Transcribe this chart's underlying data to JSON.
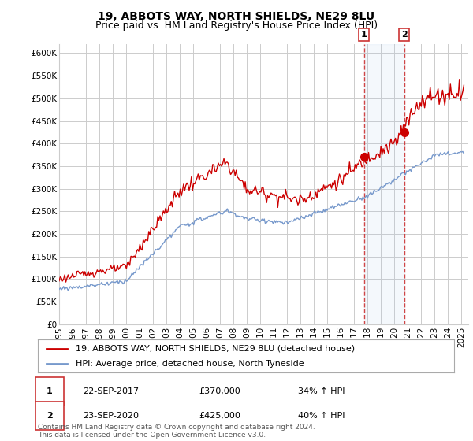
{
  "title": "19, ABBOTS WAY, NORTH SHIELDS, NE29 8LU",
  "subtitle": "Price paid vs. HM Land Registry's House Price Index (HPI)",
  "ylim": [
    0,
    620000
  ],
  "yticks": [
    0,
    50000,
    100000,
    150000,
    200000,
    250000,
    300000,
    350000,
    400000,
    450000,
    500000,
    550000,
    600000
  ],
  "ytick_labels": [
    "£0",
    "£50K",
    "£100K",
    "£150K",
    "£200K",
    "£250K",
    "£300K",
    "£350K",
    "£400K",
    "£450K",
    "£500K",
    "£550K",
    "£600K"
  ],
  "xlim_start": 1995.0,
  "xlim_end": 2025.5,
  "xticks": [
    1995,
    1996,
    1997,
    1998,
    1999,
    2000,
    2001,
    2002,
    2003,
    2004,
    2005,
    2006,
    2007,
    2008,
    2009,
    2010,
    2011,
    2012,
    2013,
    2014,
    2015,
    2016,
    2017,
    2018,
    2019,
    2020,
    2021,
    2022,
    2023,
    2024,
    2025
  ],
  "background_color": "#ffffff",
  "grid_color": "#cccccc",
  "red_line_color": "#cc0000",
  "blue_line_color": "#7799cc",
  "marker1_x": 2017.72,
  "marker1_y": 370000,
  "marker2_x": 2020.72,
  "marker2_y": 425000,
  "vline1_x": 2017.72,
  "vline2_x": 2020.72,
  "legend_label_red": "19, ABBOTS WAY, NORTH SHIELDS, NE29 8LU (detached house)",
  "legend_label_blue": "HPI: Average price, detached house, North Tyneside",
  "table_row1": [
    "1",
    "22-SEP-2017",
    "£370,000",
    "34% ↑ HPI"
  ],
  "table_row2": [
    "2",
    "23-SEP-2020",
    "£425,000",
    "40% ↑ HPI"
  ],
  "footer": "Contains HM Land Registry data © Crown copyright and database right 2024.\nThis data is licensed under the Open Government Licence v3.0.",
  "title_fontsize": 10,
  "subtitle_fontsize": 9,
  "tick_fontsize": 7.5,
  "legend_fontsize": 8,
  "table_fontsize": 8,
  "footer_fontsize": 6.5
}
